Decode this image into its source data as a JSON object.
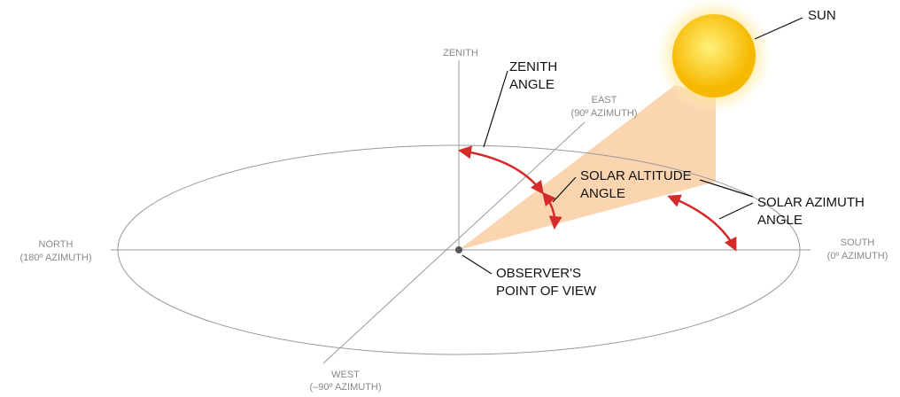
{
  "labels": {
    "sun": "SUN",
    "zenith": "ZENITH",
    "zenith_angle": [
      "ZENITH",
      "ANGLE"
    ],
    "east": [
      "EAST",
      "(90º AZIMUTH)"
    ],
    "solar_altitude_angle": [
      "SOLAR ALTITUDE",
      "ANGLE"
    ],
    "solar_azimuth_angle": [
      "SOLAR AZIMUTH",
      "ANGLE"
    ],
    "north": [
      "NORTH",
      "(180º AZIMUTH)"
    ],
    "south": [
      "SOUTH",
      "(0º AZIMUTH)"
    ],
    "observer": [
      "OBSERVER'S",
      "POINT OF VIEW"
    ],
    "west": [
      "WEST",
      "(–90º AZIMUTH)"
    ]
  }
}
